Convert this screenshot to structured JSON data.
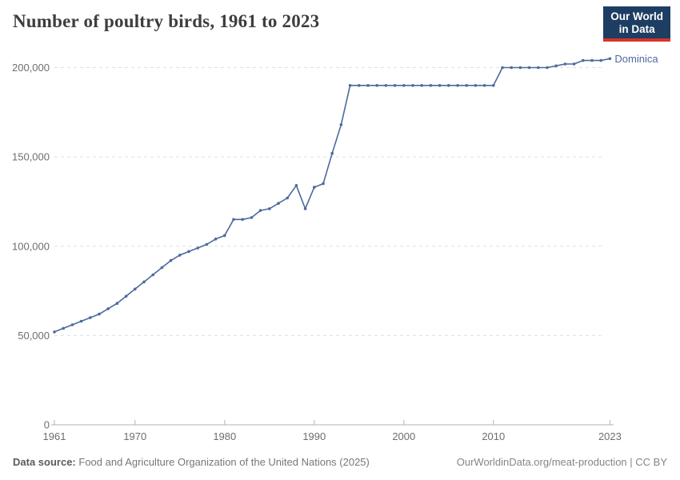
{
  "header": {
    "title": "Number of poultry birds, 1961 to 2023",
    "logo": {
      "line1": "Our World",
      "line2": "in Data"
    }
  },
  "chart_data": {
    "type": "line",
    "title": "Number of poultry birds, 1961 to 2023",
    "xlabel": "",
    "ylabel": "",
    "x_ticks": [
      1961,
      1970,
      1980,
      1990,
      2000,
      2010,
      2023
    ],
    "y_ticks": [
      0,
      50000,
      100000,
      150000,
      200000
    ],
    "xlim": [
      1961,
      2023
    ],
    "ylim": [
      0,
      200000
    ],
    "grid": "dashed-horizontal",
    "legend_position": "end-of-line",
    "line_color": "#4c6a9c",
    "series": [
      {
        "name": "Dominica",
        "points": [
          [
            1961,
            52000
          ],
          [
            1962,
            54000
          ],
          [
            1963,
            56000
          ],
          [
            1964,
            58000
          ],
          [
            1965,
            60000
          ],
          [
            1966,
            62000
          ],
          [
            1967,
            65000
          ],
          [
            1968,
            68000
          ],
          [
            1969,
            72000
          ],
          [
            1970,
            76000
          ],
          [
            1971,
            80000
          ],
          [
            1972,
            84000
          ],
          [
            1973,
            88000
          ],
          [
            1974,
            92000
          ],
          [
            1975,
            95000
          ],
          [
            1976,
            97000
          ],
          [
            1977,
            99000
          ],
          [
            1978,
            101000
          ],
          [
            1979,
            104000
          ],
          [
            1980,
            106000
          ],
          [
            1981,
            115000
          ],
          [
            1982,
            115000
          ],
          [
            1983,
            116000
          ],
          [
            1984,
            120000
          ],
          [
            1985,
            121000
          ],
          [
            1986,
            124000
          ],
          [
            1987,
            127000
          ],
          [
            1988,
            134000
          ],
          [
            1989,
            121000
          ],
          [
            1990,
            133000
          ],
          [
            1991,
            135000
          ],
          [
            1992,
            152000
          ],
          [
            1993,
            168000
          ],
          [
            1994,
            190000
          ],
          [
            1995,
            190000
          ],
          [
            1996,
            190000
          ],
          [
            1997,
            190000
          ],
          [
            1998,
            190000
          ],
          [
            1999,
            190000
          ],
          [
            2000,
            190000
          ],
          [
            2001,
            190000
          ],
          [
            2002,
            190000
          ],
          [
            2003,
            190000
          ],
          [
            2004,
            190000
          ],
          [
            2005,
            190000
          ],
          [
            2006,
            190000
          ],
          [
            2007,
            190000
          ],
          [
            2008,
            190000
          ],
          [
            2009,
            190000
          ],
          [
            2010,
            190000
          ],
          [
            2011,
            200000
          ],
          [
            2012,
            200000
          ],
          [
            2013,
            200000
          ],
          [
            2014,
            200000
          ],
          [
            2015,
            200000
          ],
          [
            2016,
            200000
          ],
          [
            2017,
            201000
          ],
          [
            2018,
            202000
          ],
          [
            2019,
            202000
          ],
          [
            2020,
            204000
          ],
          [
            2021,
            204000
          ],
          [
            2022,
            204000
          ],
          [
            2023,
            205000
          ]
        ]
      }
    ]
  },
  "footer": {
    "source_label": "Data source:",
    "source_text": "Food and Agriculture Organization of the United Nations (2025)",
    "url": "OurWorldinData.org/meat-production",
    "separator": " | ",
    "license": "CC BY"
  }
}
